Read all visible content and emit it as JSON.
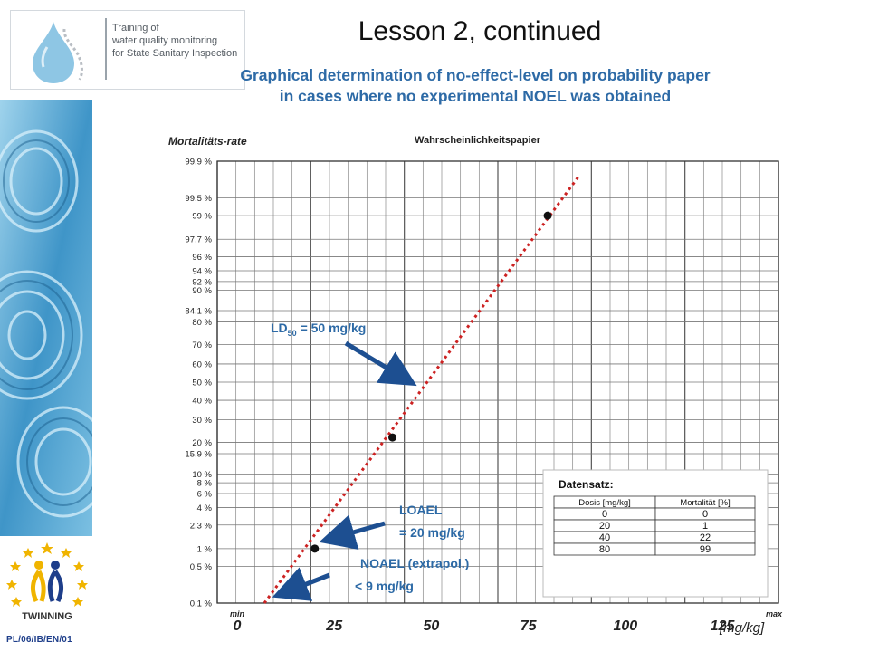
{
  "header": {
    "logo_text": [
      "Training of",
      "water quality monitoring",
      "for State Sanitary Inspection"
    ],
    "title": "Lesson 2, continued",
    "subtitle": [
      "Graphical determination of no-effect-level on probability paper",
      "in cases where no experimental NOEL was obtained"
    ]
  },
  "sidebar": {
    "eu_logo_label": "TWINNING",
    "footer_code": "PL/06/IB/EN/01"
  },
  "chart_data": {
    "type": "scatter",
    "title": "Wahrscheinlichkeitspapier",
    "ylabel": "Mortalitäts-rate",
    "xlabel": "[mg/kg]",
    "x_ticks": [
      "min",
      "0",
      "25",
      "50",
      "75",
      "100",
      "125",
      "max"
    ],
    "y_ticks": [
      "99.9 %",
      "99.5 %",
      "99 %",
      "97.7 %",
      "96 %",
      "94 %",
      "92 %",
      "90 %",
      "84.1 %",
      "80 %",
      "70 %",
      "60 %",
      "50 %",
      "40 %",
      "30 %",
      "20 %",
      "15.9 %",
      "10 %",
      "8 %",
      "6 %",
      "4 %",
      "2.3 %",
      "1 %",
      "0.5 %",
      "0.1 %"
    ],
    "xlim": [
      0,
      150
    ],
    "points": [
      {
        "x": 20,
        "y": 1
      },
      {
        "x": 40,
        "y": 22
      },
      {
        "x": 80,
        "y": 99
      }
    ],
    "fit_line": [
      {
        "x": 7,
        "y": 0.1
      },
      {
        "x": 88,
        "y": 99.8
      }
    ],
    "table": {
      "title": "Datensatz:",
      "columns": [
        "Dosis [mg/kg]",
        "Mortalität [%]"
      ],
      "rows": [
        [
          "0",
          "0"
        ],
        [
          "20",
          "1"
        ],
        [
          "40",
          "22"
        ],
        [
          "80",
          "99"
        ]
      ]
    },
    "annotations": {
      "ld50_prefix": "LD",
      "ld50_sub": "50",
      "ld50_suffix": " = 50 mg/kg",
      "loael_line1": "LOAEL",
      "loael_line2": "= 20 mg/kg",
      "noael_line1": "NOAEL (extrapol.)",
      "noael_line2": "< 9 mg/kg"
    },
    "colors": {
      "fit_line": "#cc2222",
      "arrows": "#1d4f91",
      "points": "#111111"
    }
  }
}
